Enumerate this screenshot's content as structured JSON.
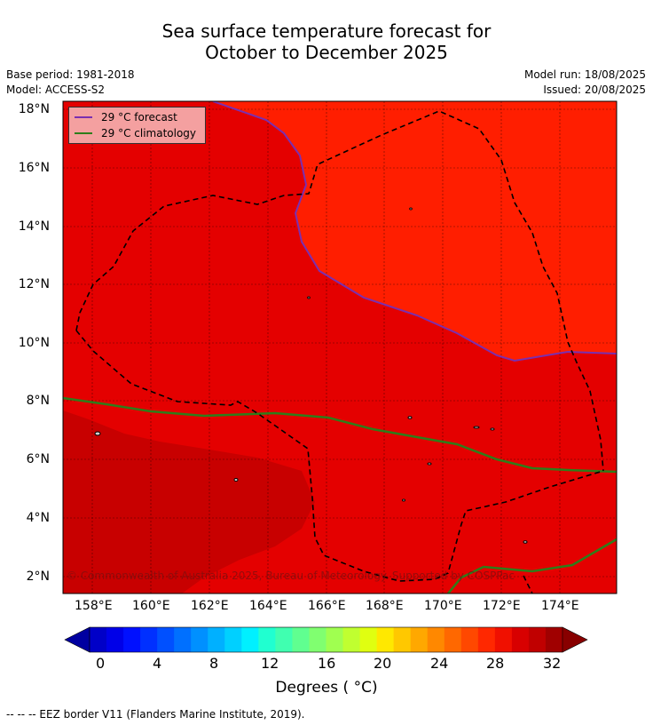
{
  "title_line1": "Sea surface temperature forecast for",
  "title_line2": "October to December 2025",
  "base_period": "Base period: 1981-2018",
  "model": "Model: ACCESS-S2",
  "model_run": "Model run: 18/08/2025",
  "issued": "Issued: 20/08/2025",
  "legend": {
    "forecast_label": "29 °C  forecast",
    "climatology_label": "29 °C  climatology",
    "forecast_color": "#7a2fb0",
    "climatology_color": "#2e7d1a"
  },
  "lat_ticks": [
    "18°N",
    "16°N",
    "14°N",
    "12°N",
    "10°N",
    "8°N",
    "6°N",
    "4°N",
    "2°N"
  ],
  "lon_ticks": [
    "158°E",
    "160°E",
    "162°E",
    "164°E",
    "166°E",
    "168°E",
    "170°E",
    "172°E",
    "174°E"
  ],
  "copyright": "© Commonwealth of Australia 2025, Bureau of Meteorology. Supported by COSPPac",
  "colorbar": {
    "ticks": [
      "0",
      "4",
      "8",
      "12",
      "16",
      "20",
      "24",
      "28",
      "32"
    ],
    "label": "Degrees ( °C)",
    "colors": [
      "#0000a0",
      "#0000c8",
      "#0000e8",
      "#0010ff",
      "#0030ff",
      "#0050ff",
      "#0070ff",
      "#0090ff",
      "#00b0ff",
      "#00d0ff",
      "#00f0ff",
      "#20ffd0",
      "#40ffb0",
      "#60ff90",
      "#80ff70",
      "#a0ff50",
      "#c0ff30",
      "#e0ff10",
      "#ffe800",
      "#ffc800",
      "#ffa800",
      "#ff8800",
      "#ff6800",
      "#ff4800",
      "#ff2800",
      "#f01000",
      "#d80000",
      "#c00000",
      "#a00000",
      "#880000"
    ]
  },
  "footer": "--  --  -- EEZ border V11 (Flanders Marine Institute, 2019).",
  "map_colors": {
    "warm_light": "#ff1e00",
    "warm_mid": "#e40000",
    "warm_dark": "#c80000"
  }
}
